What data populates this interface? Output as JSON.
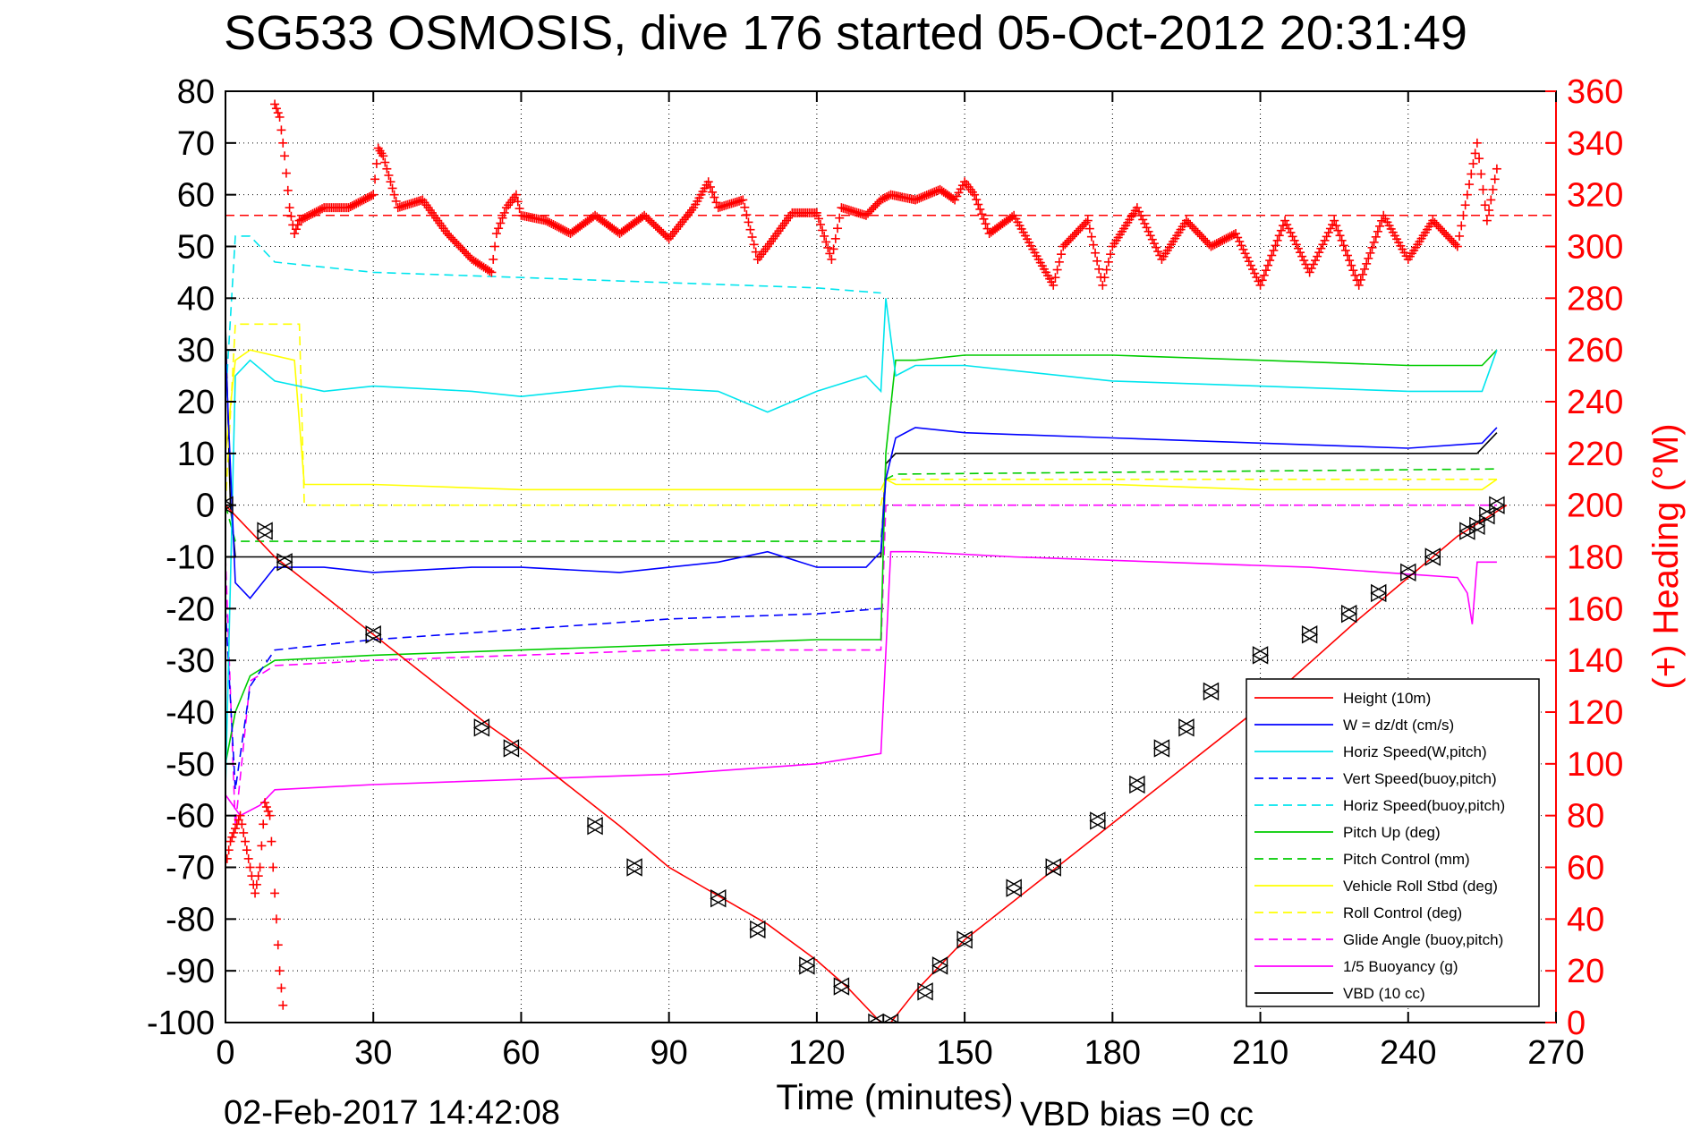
{
  "chart_data": {
    "type": "line",
    "title": "SG533 OSMOSIS, dive 176 started 05-Oct-2012 20:31:49",
    "xlabel": "Time (minutes)",
    "ylabel_right": "(+) Heading (°M)",
    "footer_left": "02-Feb-2017 14:42:08",
    "footer_right": "VBD bias =0 cc",
    "xlim": [
      0,
      270
    ],
    "ylim": [
      -100,
      80
    ],
    "ylim_right": [
      0,
      360
    ],
    "xticks": [
      0,
      30,
      60,
      90,
      120,
      150,
      180,
      210,
      240,
      270
    ],
    "yticks": [
      -100,
      -90,
      -80,
      -70,
      -60,
      -50,
      -40,
      -30,
      -20,
      -10,
      0,
      10,
      20,
      30,
      40,
      50,
      60,
      70,
      80
    ],
    "yticks_right": [
      0,
      20,
      40,
      60,
      80,
      100,
      120,
      140,
      160,
      180,
      200,
      220,
      240,
      260,
      280,
      300,
      320,
      340,
      360
    ],
    "grid": true,
    "legend_position": "bottom-right",
    "colors": {
      "axis": "#000000",
      "right_axis": "#ff0000",
      "grid": "#000000"
    },
    "series": [
      {
        "name": "Height (10m)",
        "color": "#ff0000",
        "style": "solid",
        "x": [
          0,
          10,
          30,
          54,
          60,
          80,
          90,
          110,
          120,
          126,
          133,
          135,
          140,
          150,
          170,
          190,
          210,
          230,
          250,
          260
        ],
        "y": [
          0,
          -10,
          -25,
          -43,
          -47,
          -62,
          -70,
          -81,
          -88,
          -93,
          -100,
          -100,
          -94,
          -84,
          -69,
          -54,
          -39,
          -22,
          -6,
          0
        ]
      },
      {
        "name": "W = dz/dt (cm/s)",
        "color": "#0000ff",
        "style": "solid",
        "x": [
          0,
          2,
          5,
          10,
          20,
          30,
          50,
          60,
          80,
          90,
          100,
          110,
          120,
          130,
          133,
          134,
          136,
          140,
          150,
          180,
          210,
          240,
          255,
          258
        ],
        "y": [
          30,
          -15,
          -18,
          -12,
          -12,
          -13,
          -12,
          -12,
          -13,
          -12,
          -11,
          -9,
          -12,
          -12,
          -9,
          5,
          13,
          15,
          14,
          13,
          12,
          11,
          12,
          15
        ]
      },
      {
        "name": "Horiz Speed(W,pitch)",
        "color": "#00e5ee",
        "style": "solid",
        "x": [
          0,
          2,
          5,
          10,
          20,
          30,
          50,
          60,
          80,
          100,
          110,
          120,
          130,
          133,
          134,
          136,
          140,
          150,
          180,
          210,
          240,
          255,
          258
        ],
        "y": [
          -55,
          25,
          28,
          24,
          22,
          23,
          22,
          21,
          23,
          22,
          18,
          22,
          25,
          22,
          40,
          25,
          27,
          27,
          24,
          23,
          22,
          22,
          30
        ]
      },
      {
        "name": "Vert Speed(buoy,pitch)",
        "color": "#0000ff",
        "style": "dashed",
        "x": [
          0,
          2,
          5,
          10,
          30,
          60,
          90,
          120,
          133
        ],
        "y": [
          -20,
          -55,
          -35,
          -28,
          -26,
          -24,
          -22,
          -21,
          -20
        ]
      },
      {
        "name": "Horiz Speed(buoy,pitch)",
        "color": "#00e5ee",
        "style": "dashed",
        "x": [
          0,
          2,
          5,
          10,
          30,
          60,
          90,
          120,
          133
        ],
        "y": [
          20,
          52,
          52,
          47,
          45,
          44,
          43,
          42,
          41
        ]
      },
      {
        "name": "Pitch Up (deg)",
        "color": "#00cc00",
        "style": "solid",
        "x": [
          0,
          2,
          5,
          10,
          30,
          60,
          90,
          120,
          133,
          134,
          136,
          140,
          150,
          180,
          210,
          240,
          255,
          258
        ],
        "y": [
          -50,
          -40,
          -33,
          -30,
          -29,
          -28,
          -27,
          -26,
          -26,
          10,
          28,
          28,
          29,
          29,
          28,
          27,
          27,
          30
        ]
      },
      {
        "name": "Pitch Control (mm)",
        "color": "#00cc00",
        "style": "dashed",
        "x": [
          0,
          2,
          5,
          133,
          134,
          136,
          258
        ],
        "y": [
          0,
          -7,
          -7,
          -7,
          5,
          6,
          7
        ]
      },
      {
        "name": "Vehicle Roll Stbd (deg)",
        "color": "#ffff00",
        "style": "solid",
        "x": [
          0,
          2,
          5,
          14,
          16,
          30,
          60,
          90,
          120,
          133,
          134,
          136,
          150,
          180,
          210,
          240,
          255,
          258
        ],
        "y": [
          10,
          28,
          30,
          28,
          4,
          4,
          3,
          3,
          3,
          3,
          5,
          4,
          4,
          4,
          3,
          3,
          3,
          5
        ]
      },
      {
        "name": "Roll Control (deg)",
        "color": "#ffff00",
        "style": "dashed",
        "x": [
          0,
          2,
          5,
          15,
          16,
          133,
          134,
          136,
          258
        ],
        "y": [
          0,
          35,
          35,
          35,
          0,
          0,
          5,
          5,
          5
        ]
      },
      {
        "name": "Glide Angle (buoy,pitch)",
        "color": "#ff00ff",
        "style": "dashed",
        "x": [
          0,
          2,
          5,
          10,
          30,
          60,
          90,
          120,
          133,
          134,
          136,
          258
        ],
        "y": [
          -10,
          -62,
          -34,
          -31,
          -30,
          -29,
          -28,
          -28,
          -28,
          0,
          0,
          0
        ]
      },
      {
        "name": "1/5 Buoyancy (g)",
        "color": "#ff00ff",
        "style": "solid",
        "x": [
          0,
          3,
          7,
          10,
          30,
          60,
          90,
          120,
          133,
          135,
          140,
          160,
          190,
          220,
          250,
          252,
          253,
          254,
          258
        ],
        "y": [
          -56,
          -60,
          -58,
          -55,
          -54,
          -53,
          -52,
          -50,
          -48,
          -9,
          -9,
          -10,
          -11,
          -12,
          -14,
          -17,
          -23,
          -11,
          -11
        ]
      },
      {
        "name": "VBD (10 cc)",
        "color": "#000000",
        "style": "solid",
        "x": [
          0,
          1,
          2,
          133,
          134,
          136,
          150,
          180,
          210,
          240,
          254,
          258
        ],
        "y": [
          35,
          0,
          -10,
          -10,
          8,
          10,
          10,
          10,
          10,
          10,
          10,
          14
        ]
      }
    ],
    "heading": {
      "color": "#ff0000",
      "marker": "+",
      "axis": "right",
      "x": [
        10,
        11,
        12,
        13,
        14,
        15,
        20,
        25,
        30,
        31,
        32,
        35,
        40,
        45,
        50,
        54,
        55,
        57,
        59,
        60,
        65,
        70,
        75,
        80,
        85,
        90,
        95,
        98,
        100,
        105,
        108,
        110,
        115,
        120,
        123,
        125,
        130,
        133,
        135,
        140,
        145,
        148,
        150,
        152,
        155,
        160,
        165,
        168,
        170,
        175,
        178,
        180,
        185,
        190,
        195,
        200,
        205,
        210,
        215,
        220,
        225,
        230,
        235,
        240,
        245,
        250,
        252,
        254,
        256,
        258
      ],
      "y": [
        355,
        350,
        335,
        315,
        305,
        310,
        315,
        315,
        320,
        338,
        335,
        315,
        318,
        305,
        295,
        290,
        305,
        315,
        320,
        312,
        310,
        305,
        312,
        305,
        312,
        303,
        315,
        325,
        315,
        318,
        295,
        300,
        313,
        313,
        295,
        315,
        312,
        318,
        320,
        318,
        322,
        318,
        325,
        320,
        305,
        312,
        295,
        285,
        300,
        310,
        285,
        300,
        315,
        295,
        310,
        300,
        305,
        285,
        310,
        290,
        310,
        285,
        312,
        295,
        310,
        300,
        320,
        340,
        310,
        330
      ],
      "x_dive_start": [
        0,
        1,
        2,
        3,
        4,
        5,
        6,
        7,
        8,
        9,
        10,
        11,
        12
      ],
      "y_dive_start": [
        60,
        70,
        75,
        80,
        70,
        60,
        50,
        60,
        85,
        80,
        50,
        20,
        0
      ],
      "reference_heading": 312
    },
    "markers": {
      "color": "#000000",
      "x": [
        0,
        8,
        12,
        30,
        52,
        58,
        75,
        83,
        100,
        108,
        118,
        125,
        132,
        135,
        142,
        145,
        150,
        160,
        168,
        177,
        185,
        190,
        195,
        200,
        210,
        220,
        228,
        234,
        240,
        245,
        252,
        254,
        256,
        258
      ],
      "y": [
        0,
        -5,
        -11,
        -25,
        -43,
        -47,
        -62,
        -70,
        -76,
        -82,
        -89,
        -93,
        -100,
        -100,
        -94,
        -89,
        -84,
        -74,
        -70,
        -61,
        -54,
        -47,
        -43,
        -36,
        -29,
        -25,
        -21,
        -17,
        -13,
        -10,
        -5,
        -4,
        -2,
        0
      ]
    }
  }
}
